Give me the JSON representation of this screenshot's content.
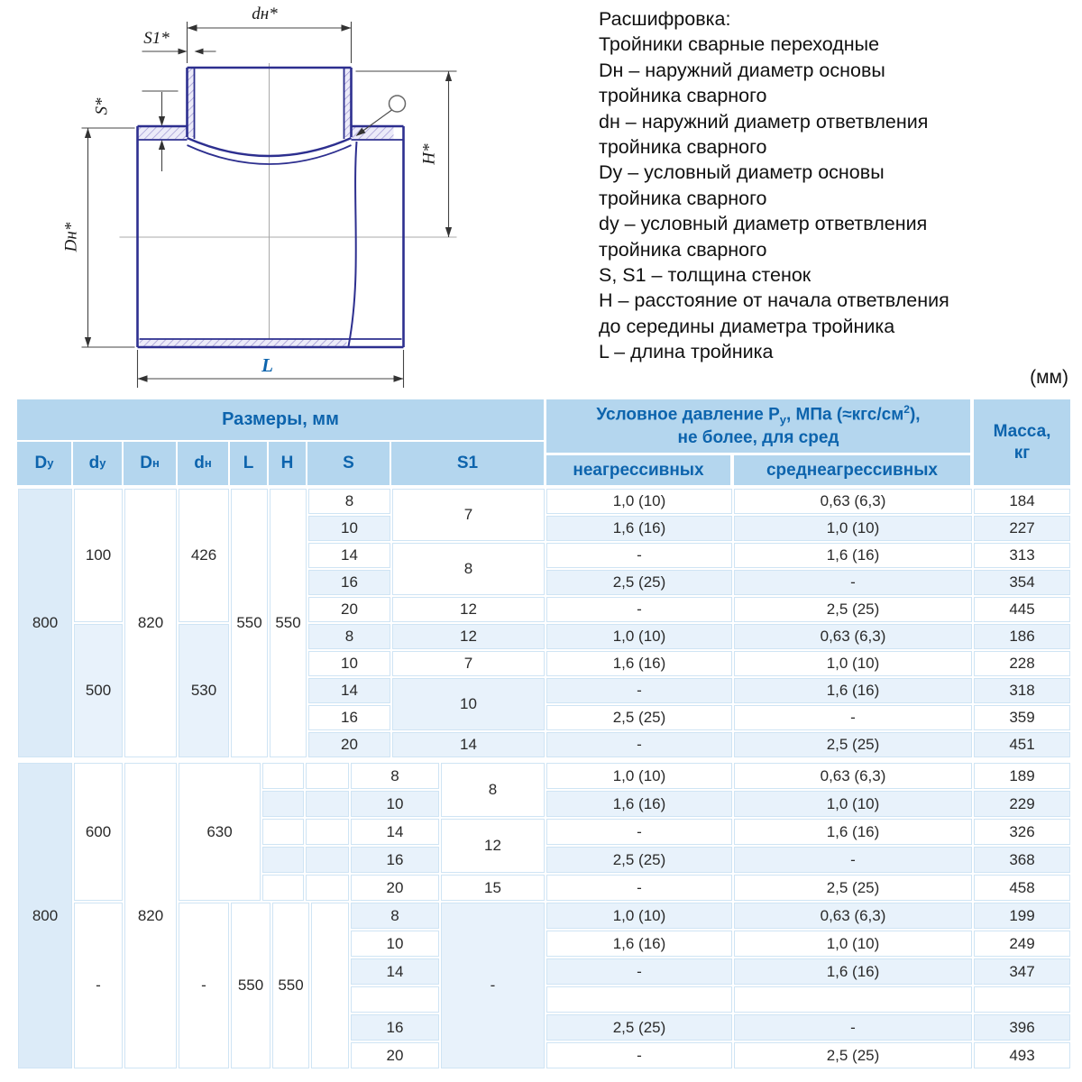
{
  "drawing": {
    "labels": {
      "dn_top": "dн*",
      "s1": "S1*",
      "s": "S*",
      "Dn_left": "Dн*",
      "H": "H*",
      "L": "L"
    }
  },
  "legend": {
    "lines": [
      "Расшифровка:",
      "Тройники сварные переходные",
      "Dн – наружний диаметр основы",
      "тройника сварного",
      "dн – наружний диаметр ответвления",
      "тройника сварного",
      "Dy – условный диаметр основы",
      "тройника сварного",
      "dy – условный диаметр ответвления",
      "тройника сварного",
      "S, S1 – толщина стенок",
      "H – расстояние от начала ответвления",
      "до середины диаметра тройника",
      "L – длина тройника"
    ]
  },
  "units_note": "(мм)",
  "table": {
    "header": {
      "sizes_title": "Размеры, мм",
      "pressure_title": {
        "p1": "Условное давление P",
        "sub": "у",
        "p2": ", МПа (≈кгс/см",
        "sup": "2",
        "p3": "),",
        "line2": "не более, для сред"
      },
      "env_cols": [
        "неагрессивных",
        "среднеагрессивных"
      ],
      "mass_title": {
        "l1": "Масса,",
        "l2": "кг"
      },
      "size_cols": [
        {
          "b": "D",
          "s": "у"
        },
        {
          "b": "d",
          "s": "у"
        },
        {
          "b": "D",
          "s": "н"
        },
        {
          "b": "d",
          "s": "н"
        },
        {
          "b": "L",
          "s": ""
        },
        {
          "b": "H",
          "s": ""
        },
        {
          "b": "S",
          "s": ""
        },
        {
          "b": "S1",
          "s": ""
        }
      ]
    },
    "groups": {
      "g1": {
        "Dy": "800",
        "Dn": "820",
        "L": "550",
        "H": "550",
        "sub1": {
          "dy": "100",
          "dn": "426"
        },
        "sub2": {
          "dy": "500",
          "dn": "530"
        }
      },
      "g2": {
        "Dy": "800",
        "Dn": "820",
        "sub1": {
          "dy": "600",
          "dn": "630"
        },
        "sub2": {
          "dy": "-",
          "dn": "-",
          "L": "550",
          "H": "550",
          "s1": "-"
        }
      }
    },
    "rows": [
      {
        "s": "8",
        "s1": "7",
        "na": "1,0 (10)",
        "sa": "0,63 (6,3)",
        "m": "184"
      },
      {
        "s": "10",
        "na": "1,6 (16)",
        "sa": "1,0 (10)",
        "m": "227"
      },
      {
        "s": "14",
        "s1": "8",
        "na": "-",
        "sa": "1,6 (16)",
        "m": "313"
      },
      {
        "s": "16",
        "na": "2,5 (25)",
        "sa": "-",
        "m": "354"
      },
      {
        "s": "20",
        "s1": "12",
        "na": "-",
        "sa": "2,5 (25)",
        "m": "445"
      },
      {
        "s": "8",
        "s1": "12",
        "na": "1,0 (10)",
        "sa": "0,63 (6,3)",
        "m": "186"
      },
      {
        "s": "10",
        "s1": "7",
        "na": "1,6 (16)",
        "sa": "1,0 (10)",
        "m": "228"
      },
      {
        "s": "14",
        "s1": "10",
        "na": "-",
        "sa": "1,6 (16)",
        "m": "318"
      },
      {
        "s": "16",
        "na": "2,5 (25)",
        "sa": "-",
        "m": "359"
      },
      {
        "s": "20",
        "s1": "14",
        "na": "-",
        "sa": "2,5 (25)",
        "m": "451"
      },
      {
        "s": "8",
        "s1": "8",
        "na": "1,0 (10)",
        "sa": "0,63 (6,3)",
        "m": "189"
      },
      {
        "s": "10",
        "na": "1,6 (16)",
        "sa": "1,0 (10)",
        "m": "229"
      },
      {
        "s": "14",
        "s1": "12",
        "na": "-",
        "sa": "1,6 (16)",
        "m": "326"
      },
      {
        "s": "16",
        "na": "2,5 (25)",
        "sa": "-",
        "m": "368"
      },
      {
        "s": "20",
        "s1": "15",
        "na": "-",
        "sa": "2,5 (25)",
        "m": "458"
      },
      {
        "s": "8",
        "na": "1,0 (10)",
        "sa": "0,63 (6,3)",
        "m": "199"
      },
      {
        "s": "10",
        "na": "1,6 (16)",
        "sa": "1,0 (10)",
        "m": "249"
      },
      {
        "s": "14",
        "na": "-",
        "sa": "1,6 (16)",
        "m": "347"
      },
      {
        "s": "",
        "na": "",
        "sa": "",
        "m": ""
      },
      {
        "s": "16",
        "na": "2,5 (25)",
        "sa": "-",
        "m": "396"
      },
      {
        "s": "20",
        "na": "-",
        "sa": "2,5 (25)",
        "m": "493"
      }
    ]
  }
}
